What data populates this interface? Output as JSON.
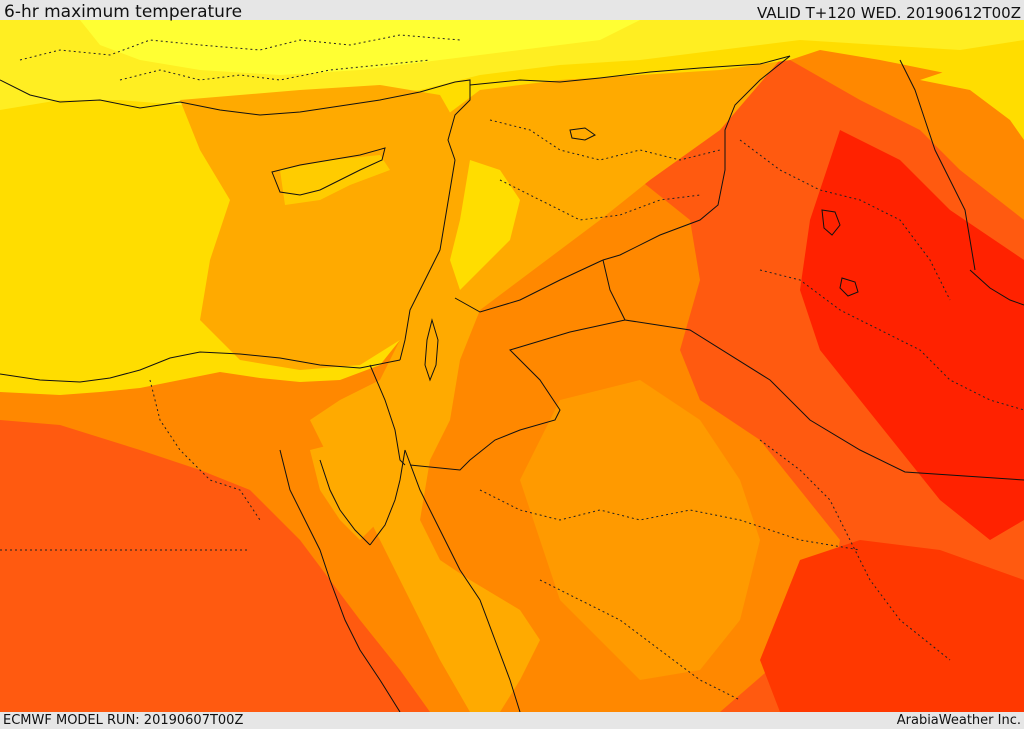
{
  "header": {
    "title": "6-hr maximum temperature",
    "valid": "VALID T+120 WED. 20190612T00Z"
  },
  "footer": {
    "model_run": "ECMWF MODEL RUN: 20190607T00Z",
    "credit": "ArabiaWeather Inc."
  },
  "map": {
    "palette": {
      "yellow_light": "#ffff33",
      "yellow": "#ffdd00",
      "amber": "#ffaa00",
      "orange": "#ff8800",
      "orange_red": "#ff5a10",
      "red": "#ff2200"
    },
    "layers": [
      "temperature-field",
      "coastlines",
      "country-borders",
      "province-borders"
    ]
  }
}
